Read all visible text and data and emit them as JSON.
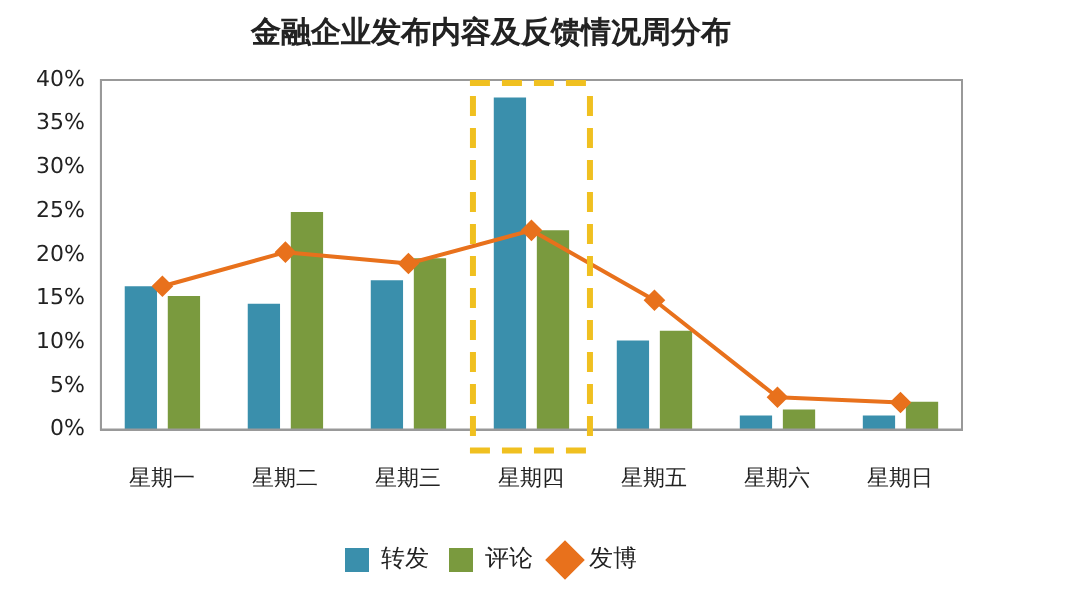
{
  "chart_data": {
    "type": "bar",
    "title": "金融企业发布内容及反馈情况周分布",
    "categories": [
      "星期一",
      "星期二",
      "星期三",
      "星期四",
      "星期五",
      "星期六",
      "星期日"
    ],
    "series": [
      {
        "name": "转发",
        "color": "#3a8fac",
        "values": [
          16.4,
          14.4,
          17.1,
          38.0,
          10.2,
          1.6,
          1.6
        ]
      },
      {
        "name": "评论",
        "color": "#7a9a3e",
        "values": [
          15.3,
          24.9,
          19.6,
          22.8,
          11.3,
          2.3,
          3.2
        ]
      },
      {
        "name": "发博",
        "type": "line",
        "color": "#e8711c",
        "marker": "diamond",
        "values": [
          16.4,
          20.3,
          19.0,
          22.8,
          14.8,
          3.7,
          3.1
        ]
      }
    ],
    "ylim": [
      0,
      40
    ],
    "yticks": [
      {
        "value": 0,
        "label": "0%"
      },
      {
        "value": 5,
        "label": "5%"
      },
      {
        "value": 10,
        "label": "10%"
      },
      {
        "value": 15,
        "label": "15%"
      },
      {
        "value": 20,
        "label": "20%"
      },
      {
        "value": 25,
        "label": "25%"
      },
      {
        "value": 30,
        "label": "30%"
      },
      {
        "value": 35,
        "label": "35%"
      },
      {
        "value": 40,
        "label": "40%"
      }
    ],
    "grid": false,
    "legend": "bottom"
  }
}
